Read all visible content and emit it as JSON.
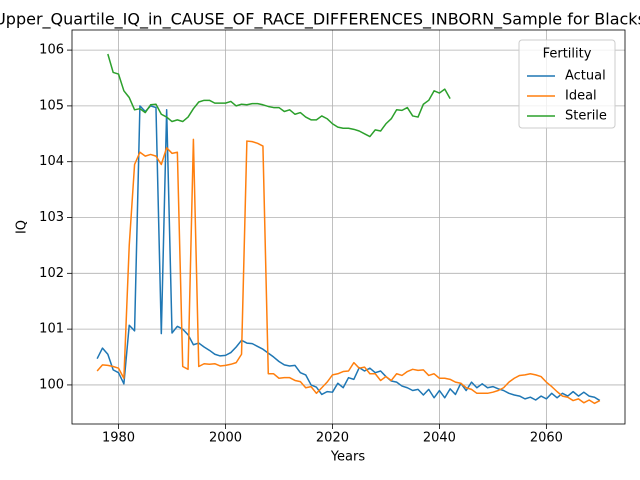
{
  "chart_data": {
    "type": "line",
    "title": "Upper_Quartile_IQ_in_CAUSE_OF_RACE_DIFFERENCES_INBORN_Sample for Blacks",
    "xlabel": "Years",
    "ylabel": "IQ",
    "x": [
      1976,
      1977,
      1978,
      1979,
      1980,
      1981,
      1982,
      1983,
      1984,
      1985,
      1986,
      1987,
      1988,
      1989,
      1990,
      1991,
      1992,
      1993,
      1994,
      1995,
      1996,
      1997,
      1998,
      1999,
      2000,
      2001,
      2002,
      2003,
      2004,
      2005,
      2006,
      2007,
      2008,
      2009,
      2010,
      2011,
      2012,
      2013,
      2014,
      2015,
      2016,
      2017,
      2018,
      2019,
      2020,
      2021,
      2022,
      2023,
      2024,
      2025,
      2026,
      2027,
      2028,
      2029,
      2030,
      2031,
      2032,
      2033,
      2034,
      2035,
      2036,
      2037,
      2038,
      2039,
      2040,
      2041,
      2042,
      2043,
      2044,
      2045,
      2046,
      2047,
      2048,
      2049,
      2050,
      2051,
      2052,
      2053,
      2054,
      2055,
      2056,
      2057,
      2058,
      2059,
      2060,
      2061,
      2062,
      2063,
      2064,
      2065,
      2066,
      2067,
      2068,
      2069,
      2070
    ],
    "series": [
      {
        "name": "Actual",
        "color": "#1f77b4",
        "values": [
          100.47,
          100.66,
          100.55,
          100.27,
          100.22,
          100.02,
          101.07,
          100.97,
          105.0,
          104.9,
          105.0,
          104.97,
          100.92,
          104.93,
          100.93,
          101.05,
          101.0,
          100.9,
          100.72,
          100.75,
          100.68,
          100.62,
          100.55,
          100.52,
          100.53,
          100.58,
          100.68,
          100.8,
          100.75,
          100.74,
          100.69,
          100.64,
          100.57,
          100.5,
          100.42,
          100.36,
          100.34,
          100.35,
          100.22,
          100.18,
          100.0,
          99.96,
          99.83,
          99.88,
          99.87,
          100.03,
          99.95,
          100.13,
          100.1,
          100.31,
          100.25,
          100.3,
          100.22,
          100.25,
          100.15,
          100.07,
          100.05,
          99.98,
          99.95,
          99.9,
          99.92,
          99.82,
          99.92,
          99.77,
          99.9,
          99.77,
          99.93,
          99.83,
          100.03,
          99.9,
          100.05,
          99.95,
          100.02,
          99.95,
          99.97,
          99.93,
          99.9,
          99.85,
          99.82,
          99.8,
          99.75,
          99.78,
          99.73,
          99.8,
          99.75,
          99.85,
          99.77,
          99.85,
          99.8,
          99.88,
          99.8,
          99.87,
          99.8,
          99.78,
          99.72
        ]
      },
      {
        "name": "Ideal",
        "color": "#ff7f0e",
        "values": [
          100.25,
          100.36,
          100.35,
          100.33,
          100.3,
          100.12,
          102.5,
          103.95,
          104.17,
          104.1,
          104.13,
          104.1,
          103.95,
          104.25,
          104.15,
          104.17,
          100.33,
          100.28,
          104.4,
          100.33,
          100.38,
          100.37,
          100.38,
          100.34,
          100.35,
          100.37,
          100.4,
          100.55,
          104.37,
          104.36,
          104.33,
          104.28,
          100.2,
          100.2,
          100.12,
          100.13,
          100.13,
          100.08,
          100.06,
          99.95,
          99.97,
          99.85,
          99.95,
          100.05,
          100.18,
          100.2,
          100.24,
          100.25,
          100.4,
          100.3,
          100.32,
          100.2,
          100.2,
          100.08,
          100.15,
          100.08,
          100.2,
          100.17,
          100.24,
          100.28,
          100.26,
          100.27,
          100.17,
          100.2,
          100.12,
          100.12,
          100.1,
          100.05,
          100.03,
          99.95,
          99.92,
          99.85,
          99.85,
          99.85,
          99.87,
          99.9,
          99.95,
          100.05,
          100.12,
          100.17,
          100.18,
          100.2,
          100.18,
          100.15,
          100.05,
          99.97,
          99.88,
          99.8,
          99.78,
          99.72,
          99.75,
          99.68,
          99.73,
          99.67,
          99.72
        ]
      },
      {
        "name": "Sterile",
        "color": "#2ca02c",
        "values": [
          null,
          null,
          105.93,
          105.6,
          105.57,
          105.27,
          105.15,
          104.93,
          104.95,
          104.88,
          105.02,
          105.03,
          104.85,
          104.8,
          104.72,
          104.75,
          104.72,
          104.8,
          104.95,
          105.07,
          105.1,
          105.1,
          105.05,
          105.05,
          105.05,
          105.08,
          105.0,
          105.03,
          105.02,
          105.04,
          105.04,
          105.02,
          104.99,
          104.97,
          104.97,
          104.9,
          104.93,
          104.85,
          104.88,
          104.8,
          104.75,
          104.75,
          104.82,
          104.77,
          104.68,
          104.62,
          104.6,
          104.6,
          104.58,
          104.55,
          104.5,
          104.45,
          104.57,
          104.55,
          104.68,
          104.77,
          104.93,
          104.92,
          104.97,
          104.82,
          104.8,
          105.03,
          105.1,
          105.27,
          105.23,
          105.3,
          105.13,
          null,
          null,
          null,
          null,
          null,
          null,
          null,
          null,
          null,
          null,
          null,
          null,
          null,
          null,
          null,
          null,
          null,
          null,
          null,
          null,
          null,
          null,
          null,
          null,
          null,
          null,
          null,
          null
        ]
      }
    ],
    "xlim": [
      1971.3,
      2074.7
    ],
    "ylim": [
      99.3,
      106.36
    ],
    "xticks": [
      1980,
      2000,
      2020,
      2040,
      2060
    ],
    "yticks": [
      100,
      101,
      102,
      103,
      104,
      105,
      106
    ],
    "grid": true,
    "legend": {
      "title": "Fertility",
      "position": "upper right"
    }
  }
}
